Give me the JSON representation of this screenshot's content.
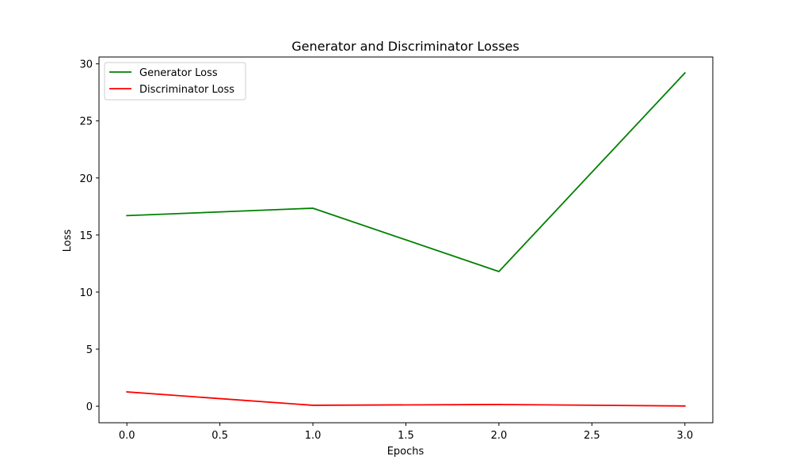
{
  "chart_data": {
    "type": "line",
    "title": "Generator and Discriminator Losses",
    "xlabel": "Epochs",
    "ylabel": "Loss",
    "x": [
      0,
      1,
      2,
      3
    ],
    "xlim": [
      -0.15,
      3.15
    ],
    "ylim": [
      -1.45,
      30.6
    ],
    "xticks": [
      0,
      0.5,
      1,
      1.5,
      2,
      2.5,
      3
    ],
    "xtick_labels": [
      "0.0",
      "0.5",
      "1.0",
      "1.5",
      "2.0",
      "2.5",
      "3.0"
    ],
    "yticks": [
      0,
      5,
      10,
      15,
      20,
      25,
      30
    ],
    "ytick_labels": [
      "0",
      "5",
      "10",
      "15",
      "20",
      "25",
      "30"
    ],
    "grid": false,
    "legend_position": "top-left",
    "series": [
      {
        "name": "Generator Loss",
        "color": "#008000",
        "values": [
          16.7,
          17.35,
          11.8,
          29.2
        ]
      },
      {
        "name": "Discriminator Loss",
        "color": "#ff0000",
        "values": [
          1.25,
          0.08,
          0.15,
          0.02
        ]
      }
    ]
  }
}
